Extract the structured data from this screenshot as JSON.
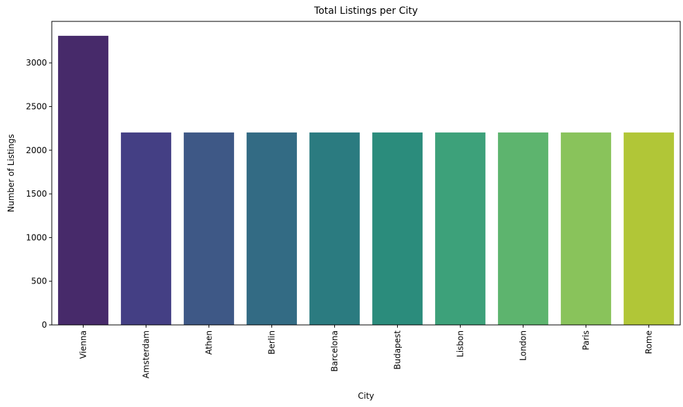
{
  "chart_data": {
    "type": "bar",
    "title": "Total Listings per City",
    "xlabel": "City",
    "ylabel": "Number of Listings",
    "categories": [
      "Vienna",
      "Amsterdam",
      "Athen",
      "Berlin",
      "Barcelona",
      "Budapest",
      "Lisbon",
      "London",
      "Paris",
      "Rome"
    ],
    "values": [
      3310,
      2203,
      2203,
      2203,
      2203,
      2203,
      2203,
      2203,
      2203,
      2203
    ],
    "colors": [
      "#472a6a",
      "#443f84",
      "#3e5886",
      "#336b84",
      "#2b7b80",
      "#2b8c7c",
      "#3da17a",
      "#5db46e",
      "#89c35b",
      "#b1c637"
    ],
    "ylim": [
      0,
      3475
    ],
    "yticks": [
      0,
      500,
      1000,
      1500,
      2000,
      2500,
      3000
    ],
    "grid": false,
    "legend": false
  }
}
